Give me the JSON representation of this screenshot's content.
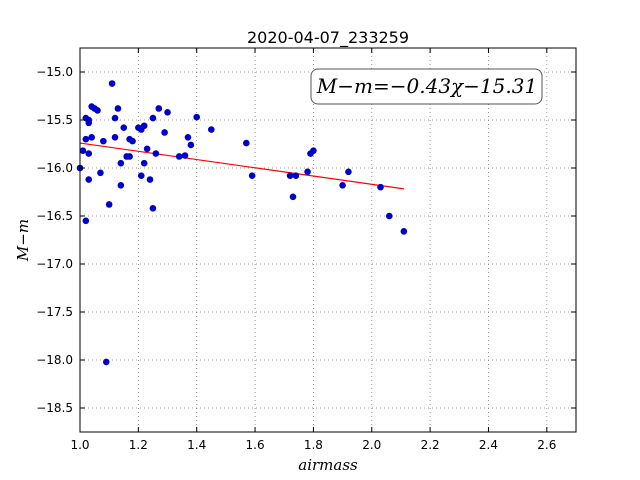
{
  "chart_data": {
    "type": "scatter",
    "title": "2020-04-07_233259",
    "xlabel": "airmass",
    "ylabel": "M−m",
    "xlim": [
      1.0,
      2.7
    ],
    "ylim": [
      -18.75,
      -14.75
    ],
    "xticks": [
      "1.0",
      "1.2",
      "1.4",
      "1.6",
      "1.8",
      "2.0",
      "2.2",
      "2.4",
      "2.6"
    ],
    "yticks": [
      "−15.0",
      "−15.5",
      "−16.0",
      "−16.5",
      "−17.0",
      "−17.5",
      "−18.0",
      "−18.5"
    ],
    "grid": true,
    "annotation": "M−m=−0.43χ−15.31",
    "fit": {
      "slope": -0.43,
      "intercept": -15.31,
      "x_range": [
        1.0,
        2.11
      ],
      "color": "#ff0000"
    },
    "point_color": "#0000cc",
    "points": [
      [
        1.0,
        -16.0
      ],
      [
        1.01,
        -15.82
      ],
      [
        1.02,
        -16.55
      ],
      [
        1.02,
        -15.48
      ],
      [
        1.02,
        -15.7
      ],
      [
        1.03,
        -15.5
      ],
      [
        1.03,
        -15.53
      ],
      [
        1.03,
        -16.12
      ],
      [
        1.03,
        -15.85
      ],
      [
        1.04,
        -15.68
      ],
      [
        1.04,
        -15.36
      ],
      [
        1.05,
        -15.38
      ],
      [
        1.06,
        -15.4
      ],
      [
        1.07,
        -16.05
      ],
      [
        1.08,
        -15.72
      ],
      [
        1.09,
        -18.02
      ],
      [
        1.1,
        -16.38
      ],
      [
        1.11,
        -15.12
      ],
      [
        1.12,
        -15.68
      ],
      [
        1.12,
        -15.48
      ],
      [
        1.13,
        -15.38
      ],
      [
        1.14,
        -16.18
      ],
      [
        1.14,
        -15.95
      ],
      [
        1.15,
        -15.58
      ],
      [
        1.16,
        -15.88
      ],
      [
        1.17,
        -15.7
      ],
      [
        1.17,
        -15.88
      ],
      [
        1.18,
        -15.72
      ],
      [
        1.2,
        -15.58
      ],
      [
        1.21,
        -16.08
      ],
      [
        1.21,
        -15.6
      ],
      [
        1.22,
        -15.56
      ],
      [
        1.22,
        -15.95
      ],
      [
        1.23,
        -15.8
      ],
      [
        1.24,
        -16.12
      ],
      [
        1.25,
        -15.48
      ],
      [
        1.25,
        -16.42
      ],
      [
        1.26,
        -15.85
      ],
      [
        1.27,
        -15.38
      ],
      [
        1.29,
        -15.63
      ],
      [
        1.3,
        -15.42
      ],
      [
        1.34,
        -15.88
      ],
      [
        1.36,
        -15.87
      ],
      [
        1.37,
        -15.68
      ],
      [
        1.38,
        -15.76
      ],
      [
        1.4,
        -15.47
      ],
      [
        1.45,
        -15.6
      ],
      [
        1.57,
        -15.74
      ],
      [
        1.59,
        -16.08
      ],
      [
        1.72,
        -16.08
      ],
      [
        1.73,
        -16.3
      ],
      [
        1.74,
        -16.08
      ],
      [
        1.78,
        -16.04
      ],
      [
        1.79,
        -15.85
      ],
      [
        1.8,
        -15.82
      ],
      [
        1.9,
        -16.18
      ],
      [
        1.92,
        -16.04
      ],
      [
        2.03,
        -16.2
      ],
      [
        2.06,
        -16.5
      ],
      [
        2.11,
        -16.66
      ]
    ]
  }
}
